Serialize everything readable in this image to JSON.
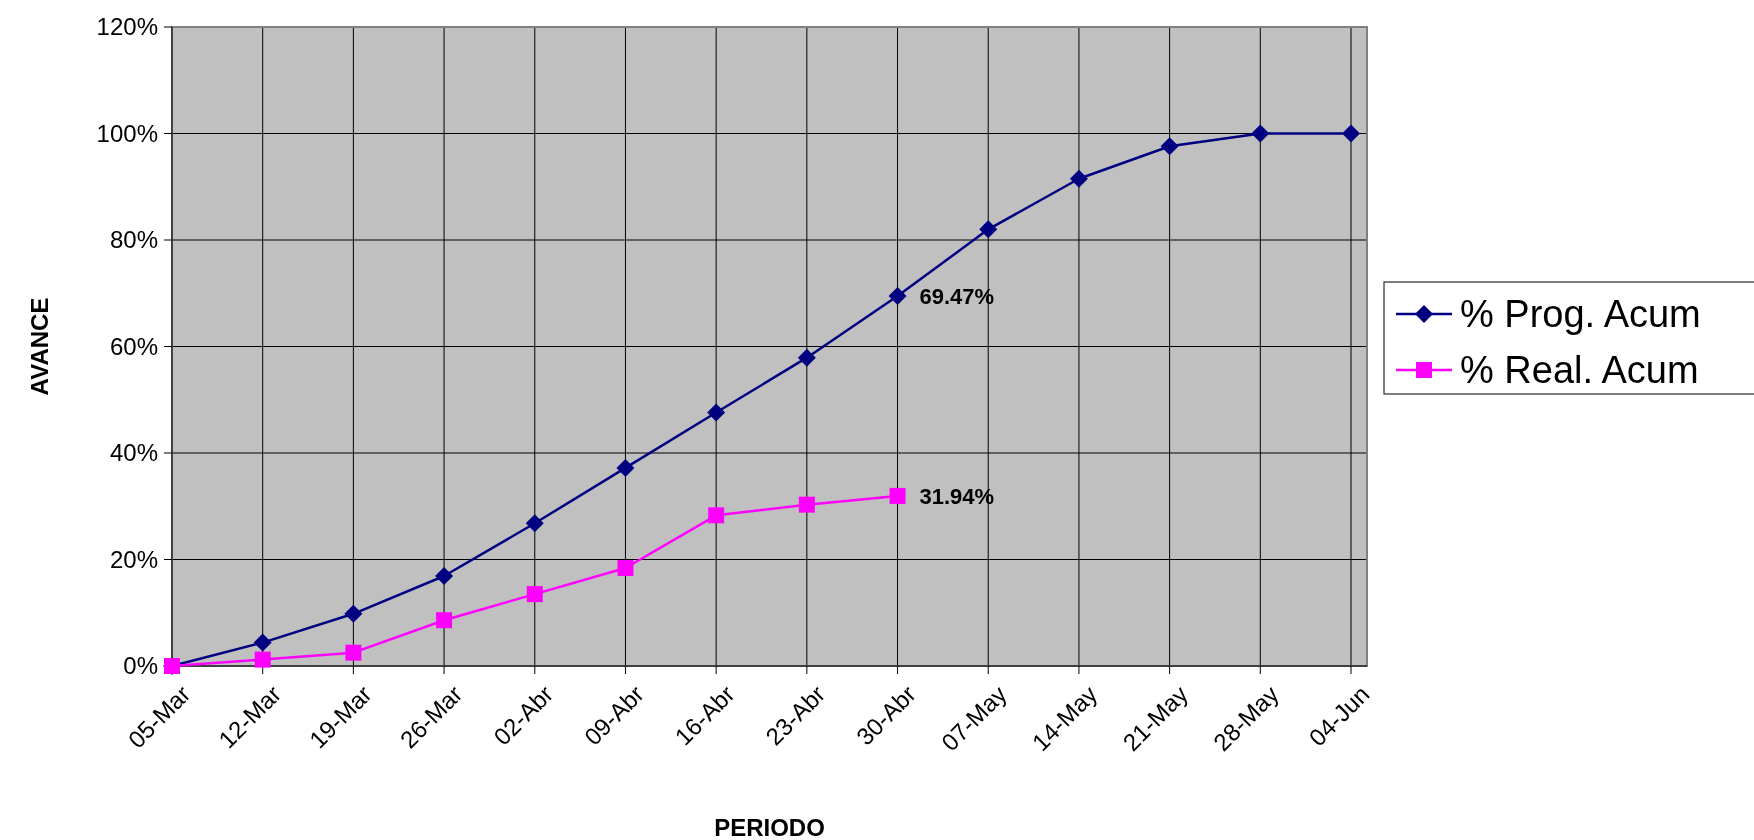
{
  "chart_data": {
    "type": "line",
    "xlabel": "PERIODO",
    "ylabel": "AVANCE",
    "categories": [
      "05-Mar",
      "12-Mar",
      "19-Mar",
      "26-Mar",
      "02-Abr",
      "09-Abr",
      "16-Abr",
      "23-Abr",
      "30-Abr",
      "07-May",
      "14-May",
      "21-May",
      "28-May",
      "04-Jun"
    ],
    "series": [
      {
        "name": "% Prog. Acum",
        "color": "#000080",
        "marker": "diamond",
        "values": [
          0,
          4.4,
          9.8,
          16.9,
          26.8,
          37.2,
          47.6,
          57.9,
          69.47,
          82,
          91.5,
          97.6,
          100,
          100
        ],
        "value_labels": [
          null,
          null,
          null,
          null,
          null,
          null,
          null,
          null,
          "69.47%",
          null,
          null,
          null,
          null,
          null
        ]
      },
      {
        "name": "% Real. Acum",
        "color": "#ff00ff",
        "marker": "square",
        "values": [
          0,
          1.2,
          2.5,
          8.6,
          13.5,
          18.4,
          28.3,
          30.3,
          31.94,
          null,
          null,
          null,
          null,
          null
        ],
        "value_labels": [
          null,
          null,
          null,
          null,
          null,
          null,
          null,
          null,
          "31.94%",
          null,
          null,
          null,
          null,
          null
        ]
      }
    ],
    "ylim": [
      0,
      120
    ],
    "yticks": [
      {
        "value": 0,
        "label": "0%"
      },
      {
        "value": 20,
        "label": "20%"
      },
      {
        "value": 40,
        "label": "40%"
      },
      {
        "value": 60,
        "label": "60%"
      },
      {
        "value": 80,
        "label": "80%"
      },
      {
        "value": 100,
        "label": "100%"
      },
      {
        "value": 120,
        "label": "120%"
      }
    ],
    "grid": true,
    "legend": "right"
  }
}
